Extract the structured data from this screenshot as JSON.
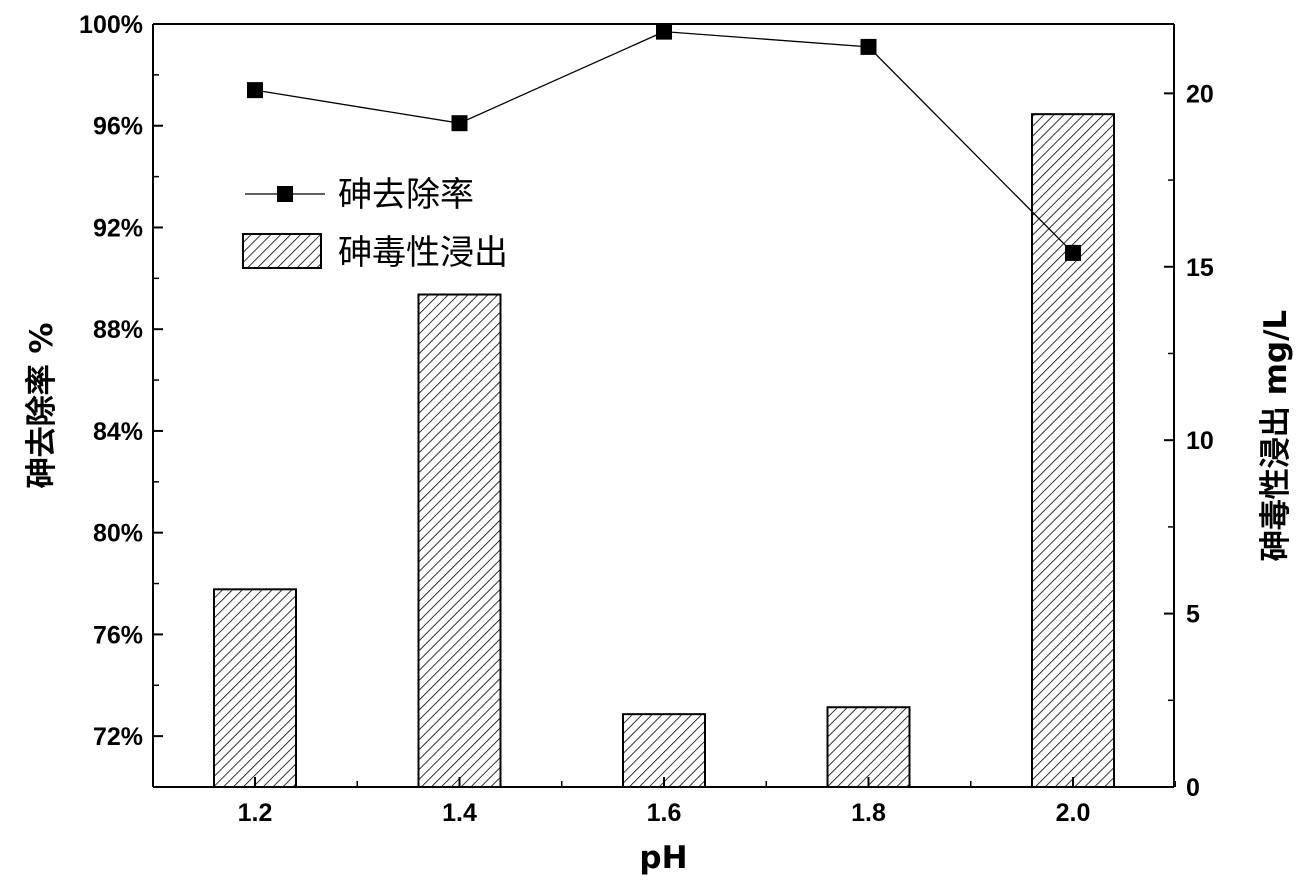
{
  "chart_data": {
    "type": "bar+line",
    "title": "",
    "x_label": "pH",
    "y_left_label": "砷去除率 %",
    "y_right_label": "砷毒性浸出 mg/L",
    "categories": [
      "1.2",
      "1.4",
      "1.6",
      "1.8",
      "2.0"
    ],
    "left_axis": {
      "min": 70,
      "max": 100,
      "ticks": [
        72,
        76,
        80,
        84,
        88,
        92,
        96,
        100
      ],
      "tick_labels": [
        "72%",
        "76%",
        "80%",
        "84%",
        "88%",
        "92%",
        "96%",
        "100%"
      ]
    },
    "right_axis": {
      "min": 0,
      "max": 22,
      "ticks": [
        0,
        5,
        10,
        15,
        20
      ],
      "tick_labels": [
        "0",
        "5",
        "10",
        "15",
        "20"
      ]
    },
    "series": [
      {
        "name": "砷去除率",
        "type": "line",
        "axis": "left",
        "marker": "square",
        "color": "#000000",
        "values": [
          97.4,
          96.1,
          99.7,
          99.1,
          91.0
        ]
      },
      {
        "name": "砷毒性浸出",
        "type": "bar",
        "axis": "right",
        "pattern": "diagonal-hatch",
        "color": "#000000",
        "values": [
          5.7,
          14.2,
          2.1,
          2.3,
          19.4
        ]
      }
    ],
    "legend": {
      "position": "upper-left",
      "entries": [
        "砷去除率",
        "砷毒性浸出"
      ]
    },
    "grid": false
  }
}
